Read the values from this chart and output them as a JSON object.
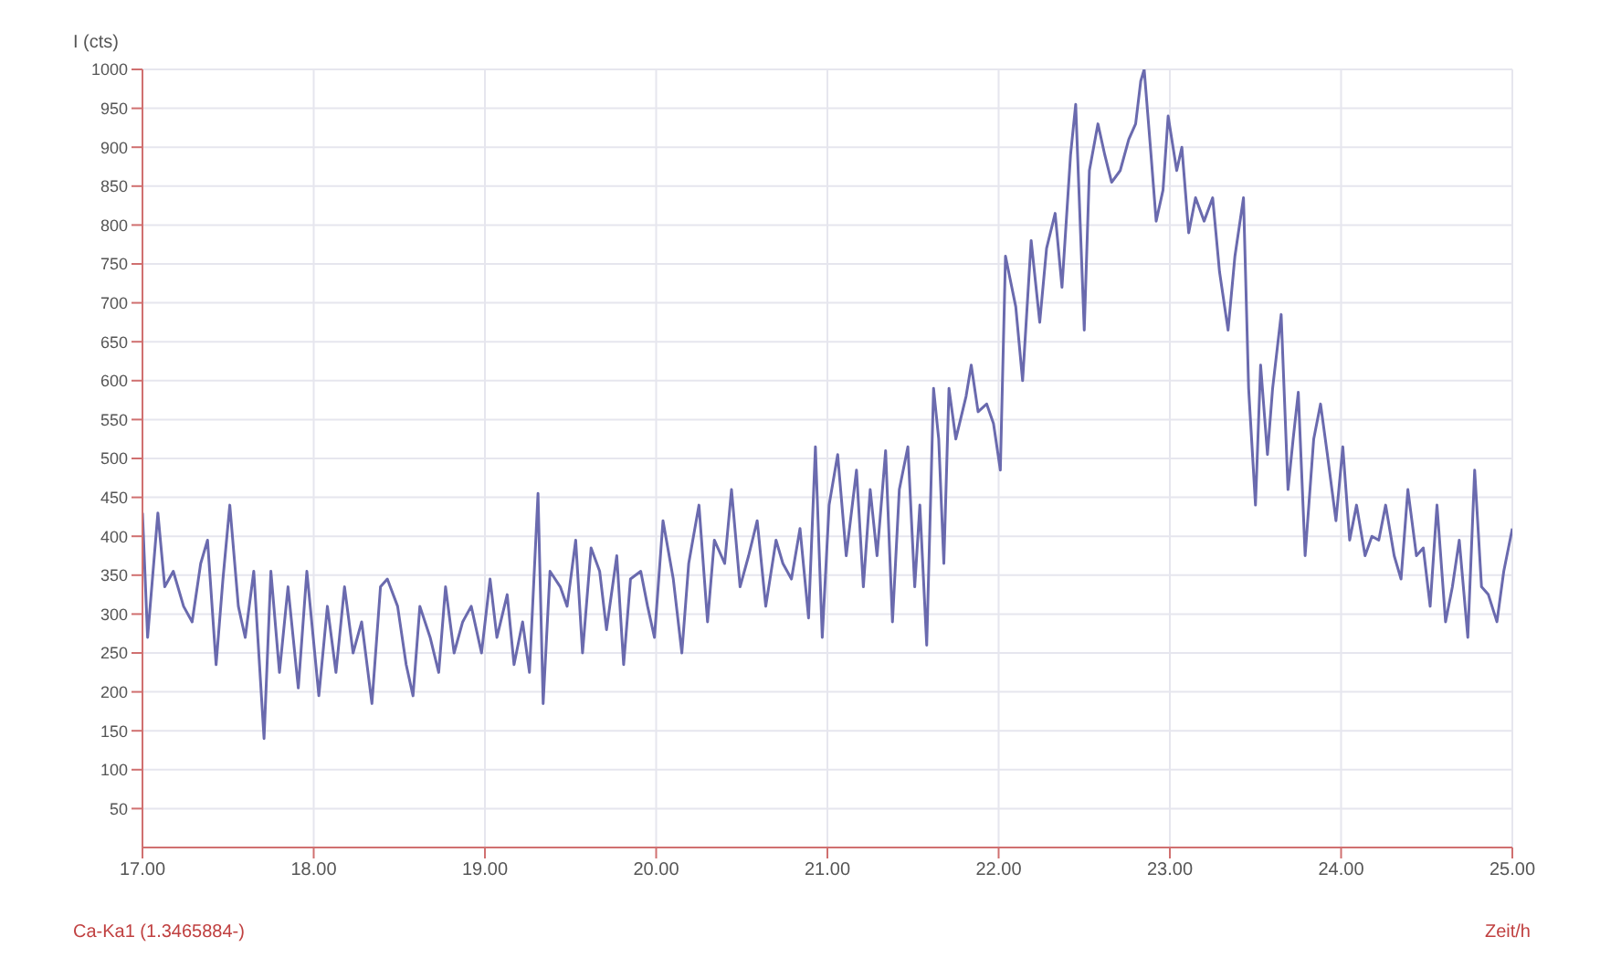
{
  "chart_data": {
    "type": "line",
    "ylabel": "I (cts)",
    "xlabel": "Zeit/h",
    "annotations": [
      "Ca-Ka1 (1.3465884-)"
    ],
    "x": [
      17.0,
      17.03,
      17.09,
      17.13,
      17.18,
      17.24,
      17.29,
      17.34,
      17.38,
      17.43,
      17.47,
      17.51,
      17.56,
      17.6,
      17.65,
      17.71,
      17.75,
      17.8,
      17.85,
      17.91,
      17.96,
      18.03,
      18.08,
      18.13,
      18.18,
      18.23,
      18.28,
      18.34,
      18.39,
      18.43,
      18.49,
      18.54,
      18.58,
      18.62,
      18.68,
      18.73,
      18.77,
      18.82,
      18.87,
      18.92,
      18.98,
      19.03,
      19.07,
      19.13,
      19.17,
      19.22,
      19.26,
      19.31,
      19.34,
      19.38,
      19.44,
      19.48,
      19.53,
      19.57,
      19.62,
      19.67,
      19.71,
      19.77,
      19.81,
      19.85,
      19.91,
      19.95,
      19.99,
      20.04,
      20.1,
      20.15,
      20.19,
      20.25,
      20.3,
      20.34,
      20.4,
      20.44,
      20.49,
      20.54,
      20.59,
      20.64,
      20.7,
      20.74,
      20.79,
      20.84,
      20.89,
      20.93,
      20.97,
      21.01,
      21.06,
      21.11,
      21.17,
      21.21,
      21.25,
      21.29,
      21.34,
      21.38,
      21.42,
      21.47,
      21.51,
      21.54,
      21.58,
      21.62,
      21.65,
      21.68,
      21.71,
      21.75,
      21.81,
      21.84,
      21.88,
      21.93,
      21.97,
      22.01,
      22.04,
      22.1,
      22.14,
      22.19,
      22.24,
      22.28,
      22.33,
      22.37,
      22.42,
      22.45,
      22.5,
      22.53,
      22.58,
      22.62,
      22.66,
      22.71,
      22.76,
      22.8,
      22.83,
      22.85,
      22.89,
      22.92,
      22.96,
      22.99,
      23.04,
      23.07,
      23.11,
      23.15,
      23.2,
      23.25,
      23.29,
      23.34,
      23.38,
      23.43,
      23.46,
      23.5,
      23.53,
      23.57,
      23.6,
      23.65,
      23.69,
      23.72,
      23.75,
      23.79,
      23.84,
      23.88,
      23.92,
      23.97,
      24.01,
      24.05,
      24.09,
      24.14,
      24.18,
      24.22,
      24.26,
      24.31,
      24.35,
      24.39,
      24.44,
      24.48,
      24.52,
      24.56,
      24.61,
      24.65,
      24.69,
      24.74,
      24.78,
      24.82,
      24.86,
      24.91,
      24.95,
      25.0
    ],
    "series": [
      {
        "color": "#6a6aae",
        "values": [
          430,
          270,
          430,
          335,
          355,
          310,
          290,
          365,
          395,
          235,
          345,
          440,
          310,
          270,
          355,
          140,
          355,
          225,
          335,
          205,
          355,
          195,
          310,
          225,
          335,
          250,
          290,
          185,
          335,
          345,
          310,
          235,
          195,
          310,
          270,
          225,
          335,
          250,
          290,
          310,
          250,
          345,
          270,
          325,
          235,
          290,
          225,
          455,
          185,
          355,
          335,
          310,
          395,
          250,
          385,
          355,
          280,
          375,
          235,
          345,
          355,
          310,
          270,
          420,
          345,
          250,
          365,
          440,
          290,
          395,
          365,
          460,
          335,
          375,
          420,
          310,
          395,
          365,
          345,
          410,
          295,
          515,
          270,
          440,
          505,
          375,
          485,
          335,
          460,
          375,
          510,
          290,
          460,
          515,
          335,
          440,
          260,
          590,
          525,
          365,
          590,
          525,
          580,
          620,
          560,
          570,
          545,
          485,
          760,
          695,
          600,
          780,
          675,
          770,
          815,
          720,
          890,
          955,
          665,
          870,
          930,
          890,
          855,
          870,
          910,
          930,
          985,
          1000,
          890,
          805,
          845,
          940,
          870,
          900,
          790,
          835,
          805,
          835,
          740,
          665,
          760,
          835,
          590,
          440,
          620,
          505,
          590,
          685,
          460,
          525,
          585,
          375,
          525,
          570,
          505,
          420,
          515,
          395,
          440,
          375,
          400,
          395,
          440,
          375,
          345,
          460,
          375,
          385,
          310,
          440,
          290,
          335,
          395,
          270,
          485,
          335,
          325,
          290,
          355,
          410
        ]
      }
    ],
    "xlim": [
      17,
      25
    ],
    "xticks": [
      {
        "value": 17,
        "label": "17.00"
      },
      {
        "value": 18,
        "label": "18.00"
      },
      {
        "value": 19,
        "label": "19.00"
      },
      {
        "value": 20,
        "label": "20.00"
      },
      {
        "value": 21,
        "label": "21.00"
      },
      {
        "value": 22,
        "label": "22.00"
      },
      {
        "value": 23,
        "label": "23.00"
      },
      {
        "value": 24,
        "label": "24.00"
      },
      {
        "value": 25,
        "label": "25.00"
      }
    ],
    "ylim": [
      0,
      1000
    ],
    "yticks": [
      50,
      100,
      150,
      200,
      250,
      300,
      350,
      400,
      450,
      500,
      550,
      600,
      650,
      700,
      750,
      800,
      850,
      900,
      950,
      1000
    ],
    "grid": true,
    "marker": "none",
    "line_style": "solid"
  }
}
